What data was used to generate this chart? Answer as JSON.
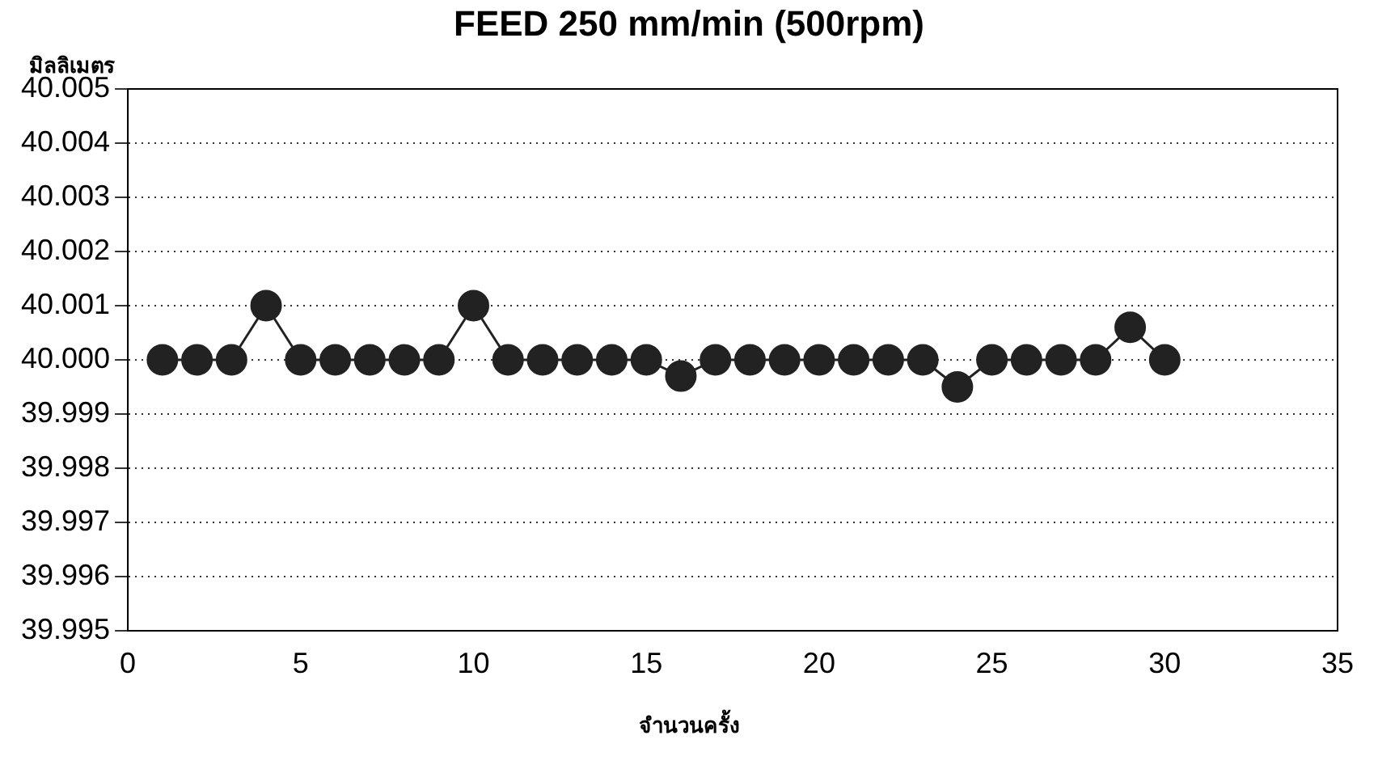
{
  "chart_data": {
    "type": "line",
    "title": "FEED 250 mm/min (500rpm)",
    "ylabel": "มิลลิเมตร",
    "xlabel": "จำนวนครั้ง",
    "x": [
      1,
      2,
      3,
      4,
      5,
      6,
      7,
      8,
      9,
      10,
      11,
      12,
      13,
      14,
      15,
      16,
      17,
      18,
      19,
      20,
      21,
      22,
      23,
      24,
      25,
      26,
      27,
      28,
      29,
      30
    ],
    "series": [
      {
        "color": "#222222",
        "values": [
          40.0,
          40.0,
          40.0,
          40.001,
          40.0,
          40.0,
          40.0,
          40.0,
          40.0,
          40.001,
          40.0,
          40.0,
          40.0,
          40.0,
          40.0,
          39.9997,
          40.0,
          40.0,
          40.0,
          40.0,
          40.0,
          40.0,
          40.0,
          39.9995,
          40.0,
          40.0,
          40.0,
          40.0,
          40.0006,
          40.0
        ]
      }
    ],
    "xlim": [
      0,
      35
    ],
    "xticks": [
      0,
      5,
      10,
      15,
      20,
      25,
      30,
      35
    ],
    "ylim": [
      39.995,
      40.005
    ],
    "yticks": [
      {
        "value": 39.995,
        "label": "39.995"
      },
      {
        "value": 39.996,
        "label": "39.996"
      },
      {
        "value": 39.997,
        "label": "39.997"
      },
      {
        "value": 39.998,
        "label": "39.998"
      },
      {
        "value": 39.999,
        "label": "39.999"
      },
      {
        "value": 40.0,
        "label": "40.000"
      },
      {
        "value": 40.001,
        "label": "40.001"
      },
      {
        "value": 40.002,
        "label": "40.002"
      },
      {
        "value": 40.003,
        "label": "40.003"
      },
      {
        "value": 40.004,
        "label": "40.004"
      },
      {
        "value": 40.005,
        "label": "40.005"
      }
    ],
    "grid": "y",
    "marker": "circle",
    "line_style": "solid",
    "legend": false
  }
}
